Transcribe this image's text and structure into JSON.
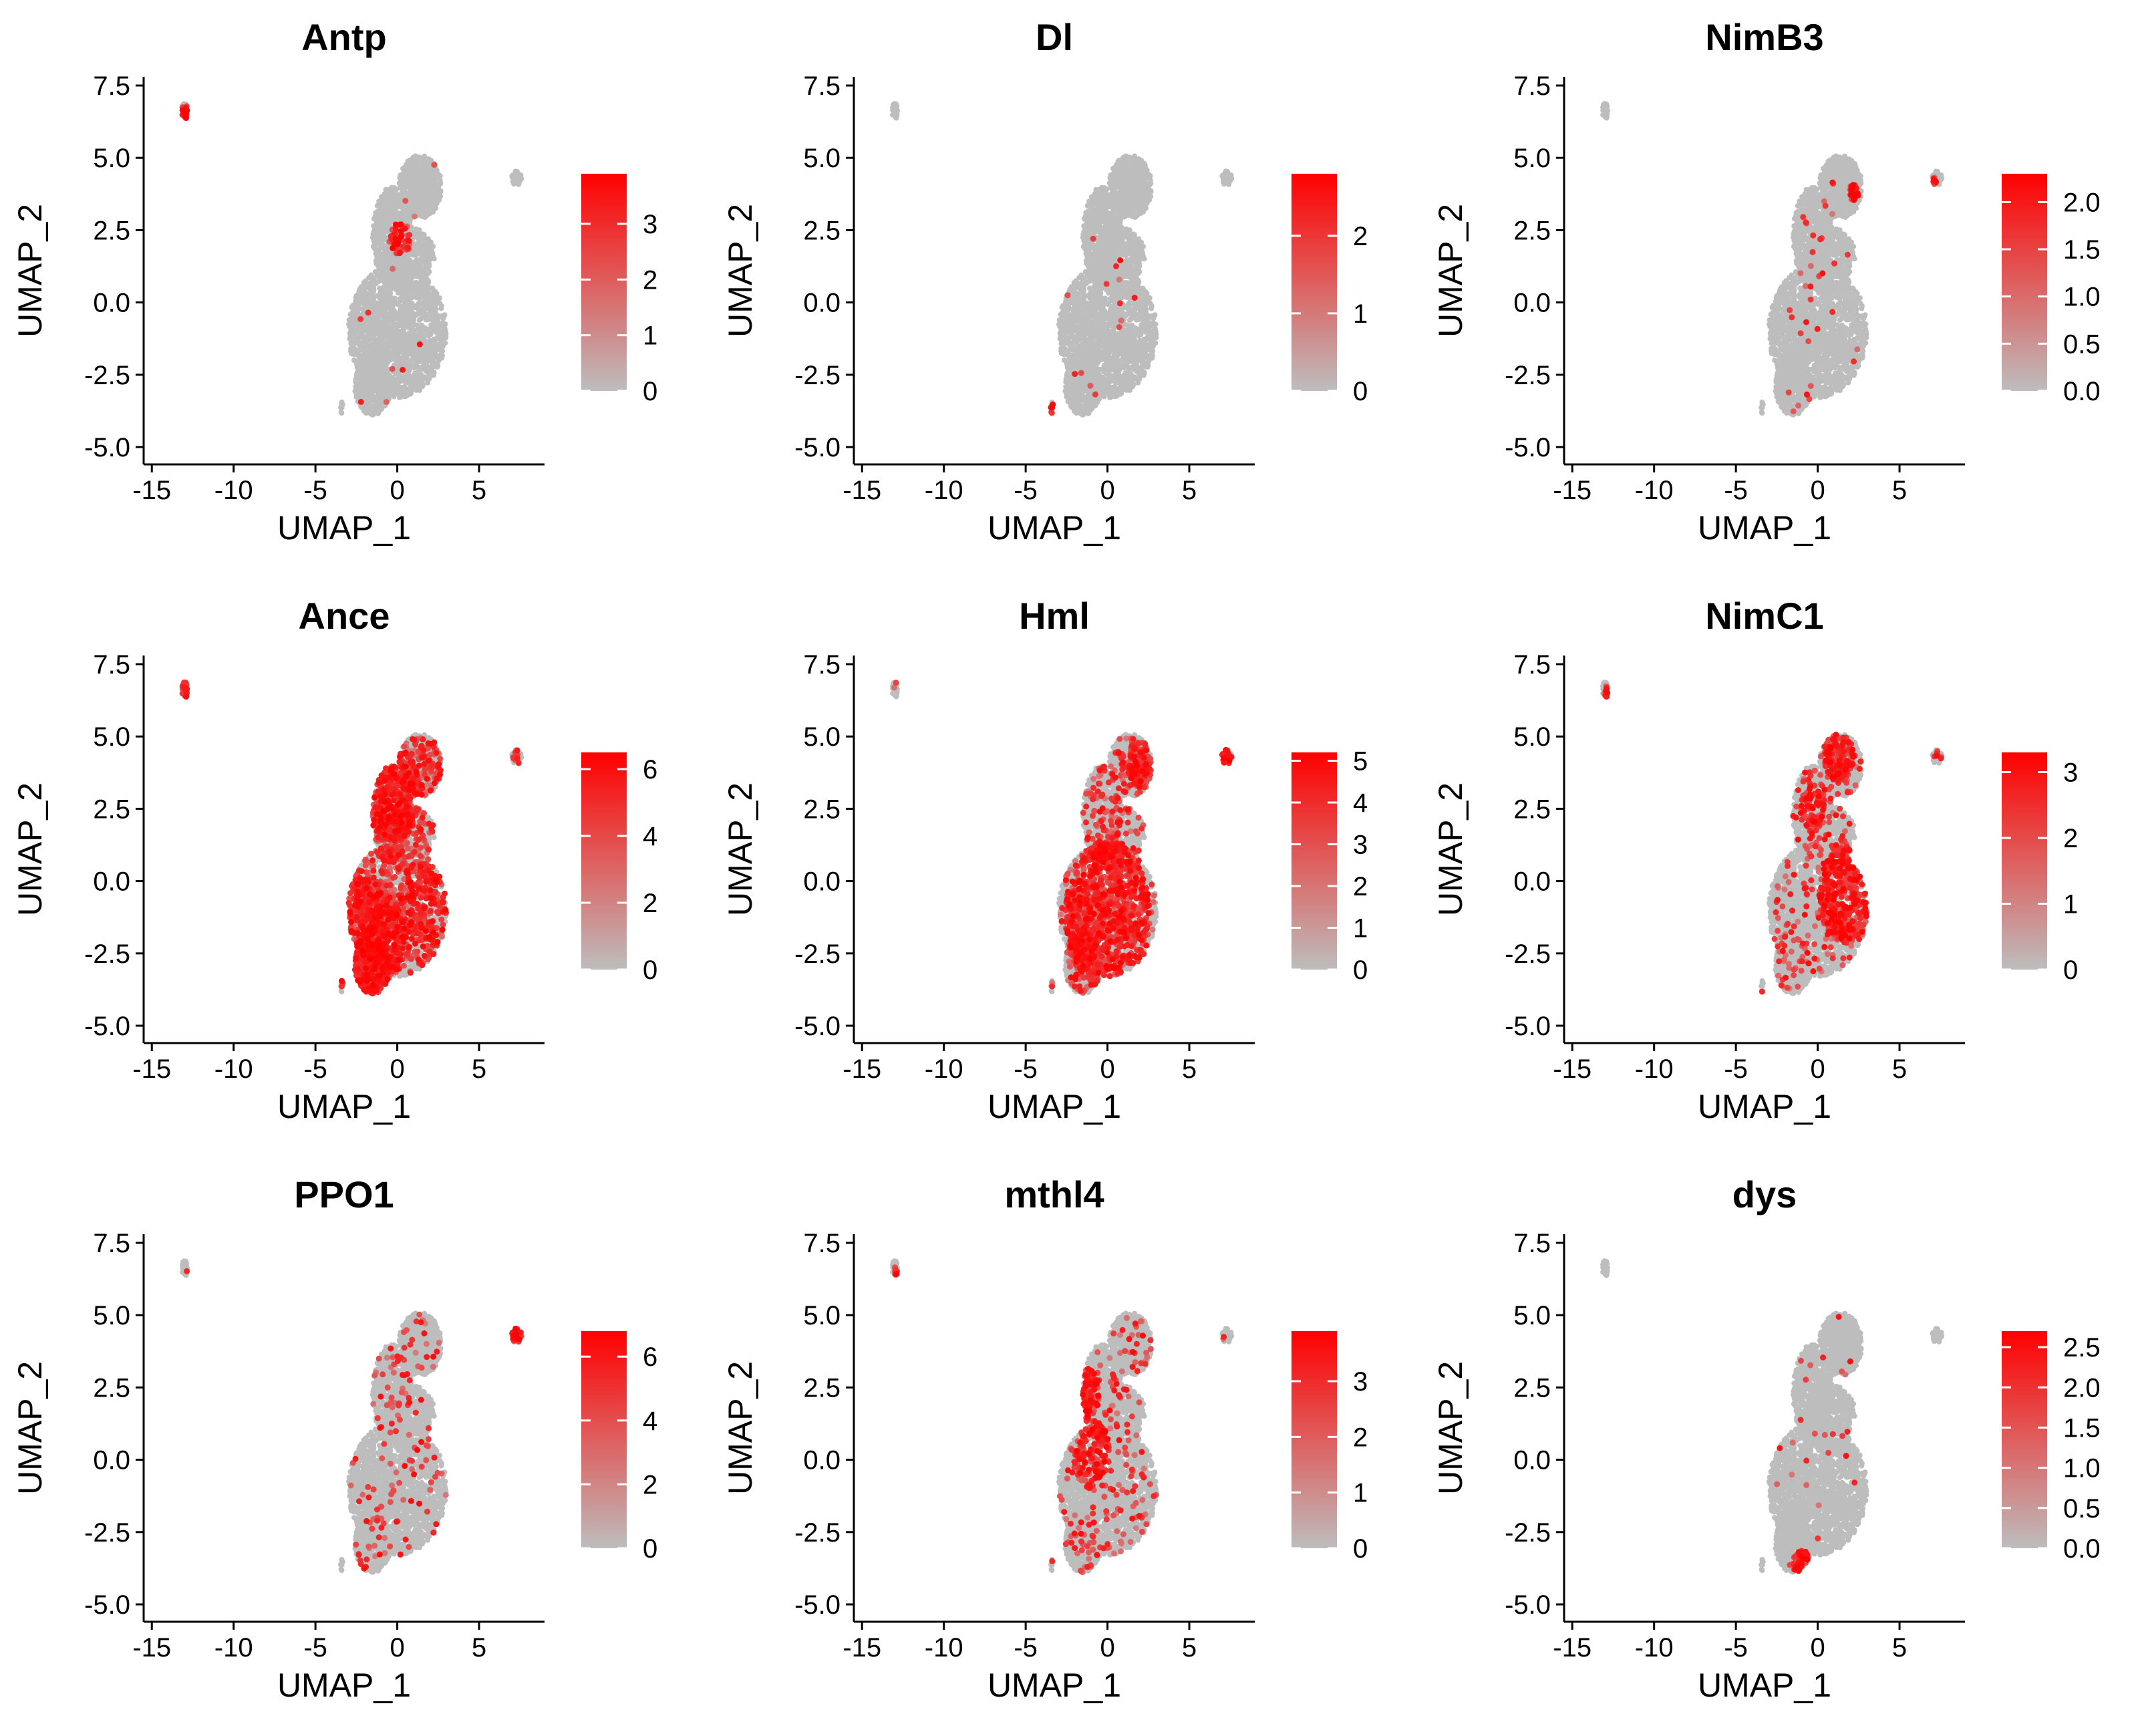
{
  "chart_data": [
    {
      "type": "scatter",
      "title": "Antp",
      "xlabel": "UMAP_1",
      "ylabel": "UMAP_2",
      "xlim": [
        -15.5,
        9
      ],
      "ylim": [
        -5.6,
        7.8
      ],
      "x_ticks": [
        "-15",
        "-10",
        "-5",
        "0",
        "5"
      ],
      "y_ticks": [
        "-5.0",
        "-2.5",
        "0.0",
        "2.5",
        "5.0",
        "7.5"
      ],
      "legend": {
        "min": 0,
        "max": 3.9,
        "ticks": [
          "0",
          "1",
          "2",
          "3"
        ]
      },
      "hotspots": [
        {
          "x": -13.0,
          "y": 6.6,
          "r": 0.25,
          "v": 0.8
        },
        {
          "x": 0.2,
          "y": 2.2,
          "r": 0.6,
          "v": 0.3
        }
      ],
      "background_rate": 0.005
    },
    {
      "type": "scatter",
      "title": "Dl",
      "xlabel": "UMAP_1",
      "ylabel": "UMAP_2",
      "xlim": [
        -15.5,
        9
      ],
      "ylim": [
        -5.6,
        7.8
      ],
      "x_ticks": [
        "-15",
        "-10",
        "-5",
        "0",
        "5"
      ],
      "y_ticks": [
        "-5.0",
        "-2.5",
        "0.0",
        "2.5",
        "5.0",
        "7.5"
      ],
      "legend": {
        "min": 0,
        "max": 2.8,
        "ticks": [
          "0",
          "1",
          "2"
        ]
      },
      "hotspots": [
        {
          "x": -3.3,
          "y": -3.7,
          "r": 0.2,
          "v": 0.9
        }
      ],
      "background_rate": 0.003
    },
    {
      "type": "scatter",
      "title": "NimB3",
      "xlabel": "UMAP_1",
      "ylabel": "UMAP_2",
      "xlim": [
        -15.5,
        9
      ],
      "ylim": [
        -5.6,
        7.8
      ],
      "x_ticks": [
        "-15",
        "-10",
        "-5",
        "0",
        "5"
      ],
      "y_ticks": [
        "-5.0",
        "-2.5",
        "0.0",
        "2.5",
        "5.0",
        "7.5"
      ],
      "legend": {
        "min": 0,
        "max": 2.3,
        "ticks": [
          "0.0",
          "0.5",
          "1.0",
          "1.5",
          "2.0"
        ]
      },
      "hotspots": [
        {
          "x": 7.0,
          "y": 4.1,
          "r": 0.25,
          "v": 0.9
        },
        {
          "x": 2.2,
          "y": 3.8,
          "r": 0.3,
          "v": 0.8
        }
      ],
      "background_rate": 0.01
    },
    {
      "type": "scatter",
      "title": "Ance",
      "xlabel": "UMAP_1",
      "ylabel": "UMAP_2",
      "xlim": [
        -15.5,
        9
      ],
      "ylim": [
        -5.6,
        7.8
      ],
      "x_ticks": [
        "-15",
        "-10",
        "-5",
        "0",
        "5"
      ],
      "y_ticks": [
        "-5.0",
        "-2.5",
        "0.0",
        "2.5",
        "5.0",
        "7.5"
      ],
      "legend": {
        "min": 0,
        "max": 6.5,
        "ticks": [
          "0",
          "2",
          "4",
          "6"
        ]
      },
      "hotspots": [
        {
          "x": -1.8,
          "y": -2.0,
          "r": 2.2,
          "v": 0.85
        },
        {
          "x": -0.2,
          "y": 3.0,
          "r": 1.6,
          "v": 0.8
        },
        {
          "x": -13.0,
          "y": 6.6,
          "r": 0.3,
          "v": 0.7
        },
        {
          "x": 1.8,
          "y": -1.0,
          "r": 1.8,
          "v": 0.35
        }
      ],
      "background_rate": 0.3
    },
    {
      "type": "scatter",
      "title": "Hml",
      "xlabel": "UMAP_1",
      "ylabel": "UMAP_2",
      "xlim": [
        -15.5,
        9
      ],
      "ylim": [
        -5.6,
        7.8
      ],
      "x_ticks": [
        "-15",
        "-10",
        "-5",
        "0",
        "5"
      ],
      "y_ticks": [
        "-5.0",
        "-2.5",
        "0.0",
        "2.5",
        "5.0",
        "7.5"
      ],
      "legend": {
        "min": 0,
        "max": 5.2,
        "ticks": [
          "0",
          "1",
          "2",
          "3",
          "4",
          "5"
        ]
      },
      "hotspots": [
        {
          "x": 0.0,
          "y": -1.2,
          "r": 2.6,
          "v": 0.6
        },
        {
          "x": 7.3,
          "y": 4.3,
          "r": 0.35,
          "v": 0.8
        },
        {
          "x": 2.0,
          "y": 4.0,
          "r": 0.8,
          "v": 0.5
        }
      ],
      "background_rate": 0.15
    },
    {
      "type": "scatter",
      "title": "NimC1",
      "xlabel": "UMAP_1",
      "ylabel": "UMAP_2",
      "xlim": [
        -15.5,
        9
      ],
      "ylim": [
        -5.6,
        7.8
      ],
      "x_ticks": [
        "-15",
        "-10",
        "-5",
        "0",
        "5"
      ],
      "y_ticks": [
        "-5.0",
        "-2.5",
        "0.0",
        "2.5",
        "5.0",
        "7.5"
      ],
      "legend": {
        "min": 0,
        "max": 3.3,
        "ticks": [
          "0",
          "1",
          "2",
          "3"
        ]
      },
      "hotspots": [
        {
          "x": 1.8,
          "y": -0.5,
          "r": 1.7,
          "v": 0.75
        },
        {
          "x": 1.3,
          "y": 4.3,
          "r": 0.9,
          "v": 0.6
        },
        {
          "x": -0.3,
          "y": 2.5,
          "r": 0.8,
          "v": 0.5
        },
        {
          "x": -12.9,
          "y": 6.4,
          "r": 0.2,
          "v": 0.7
        }
      ],
      "background_rate": 0.08
    },
    {
      "type": "scatter",
      "title": "PPO1",
      "xlabel": "UMAP_1",
      "ylabel": "UMAP_2",
      "xlim": [
        -15.5,
        9
      ],
      "ylim": [
        -5.6,
        7.8
      ],
      "x_ticks": [
        "-15",
        "-10",
        "-5",
        "0",
        "5"
      ],
      "y_ticks": [
        "-5.0",
        "-2.5",
        "0.0",
        "2.5",
        "5.0",
        "7.5"
      ],
      "legend": {
        "min": 0,
        "max": 6.8,
        "ticks": [
          "0",
          "2",
          "4",
          "6"
        ]
      },
      "hotspots": [
        {
          "x": 7.3,
          "y": 4.3,
          "r": 0.45,
          "v": 0.95
        }
      ],
      "background_rate": 0.04
    },
    {
      "type": "scatter",
      "title": "mthl4",
      "xlabel": "UMAP_1",
      "ylabel": "UMAP_2",
      "xlim": [
        -15.5,
        9
      ],
      "ylim": [
        -5.6,
        7.8
      ],
      "x_ticks": [
        "-15",
        "-10",
        "-5",
        "0",
        "5"
      ],
      "y_ticks": [
        "-5.0",
        "-2.5",
        "0.0",
        "2.5",
        "5.0",
        "7.5"
      ],
      "legend": {
        "min": 0,
        "max": 3.9,
        "ticks": [
          "0",
          "1",
          "2",
          "3"
        ]
      },
      "hotspots": [
        {
          "x": -1.4,
          "y": 2.3,
          "r": 0.9,
          "v": 0.85
        },
        {
          "x": -1.0,
          "y": 0.2,
          "r": 1.2,
          "v": 0.4
        },
        {
          "x": -12.9,
          "y": 6.4,
          "r": 0.2,
          "v": 0.5
        }
      ],
      "background_rate": 0.06
    },
    {
      "type": "scatter",
      "title": "dys",
      "xlabel": "UMAP_1",
      "ylabel": "UMAP_2",
      "xlim": [
        -15.5,
        9
      ],
      "ylim": [
        -5.6,
        7.8
      ],
      "x_ticks": [
        "-15",
        "-10",
        "-5",
        "0",
        "5"
      ],
      "y_ticks": [
        "-5.0",
        "-2.5",
        "0.0",
        "2.5",
        "5.0",
        "7.5"
      ],
      "legend": {
        "min": 0,
        "max": 2.7,
        "ticks": [
          "0.0",
          "0.5",
          "1.0",
          "1.5",
          "2.0",
          "2.5"
        ]
      },
      "hotspots": [
        {
          "x": -1.0,
          "y": -3.6,
          "r": 0.5,
          "v": 0.9
        }
      ],
      "background_rate": 0.01
    }
  ],
  "colors": {
    "low": "#bdbdbd",
    "high": "#ff0000",
    "axis": "#000000",
    "background": "#ffffff"
  },
  "cell_clusters": [
    {
      "cx": 0.0,
      "cy": -1.0,
      "rx": 3.0,
      "ry": 2.3,
      "n": 1700
    },
    {
      "cx": -1.5,
      "cy": -2.9,
      "rx": 1.1,
      "ry": 1.0,
      "n": 400
    },
    {
      "cx": -0.3,
      "cy": 2.3,
      "rx": 1.2,
      "ry": 1.7,
      "n": 600
    },
    {
      "cx": 1.4,
      "cy": 4.0,
      "rx": 1.3,
      "ry": 1.1,
      "n": 500
    },
    {
      "cx": 0.7,
      "cy": 1.6,
      "rx": 1.6,
      "ry": 1.0,
      "n": 300
    },
    {
      "cx": -13.0,
      "cy": 6.6,
      "rx": 0.2,
      "ry": 0.3,
      "n": 30
    },
    {
      "cx": 7.3,
      "cy": 4.3,
      "rx": 0.3,
      "ry": 0.25,
      "n": 35
    },
    {
      "cx": -3.4,
      "cy": -3.6,
      "rx": 0.1,
      "ry": 0.25,
      "n": 8
    }
  ]
}
